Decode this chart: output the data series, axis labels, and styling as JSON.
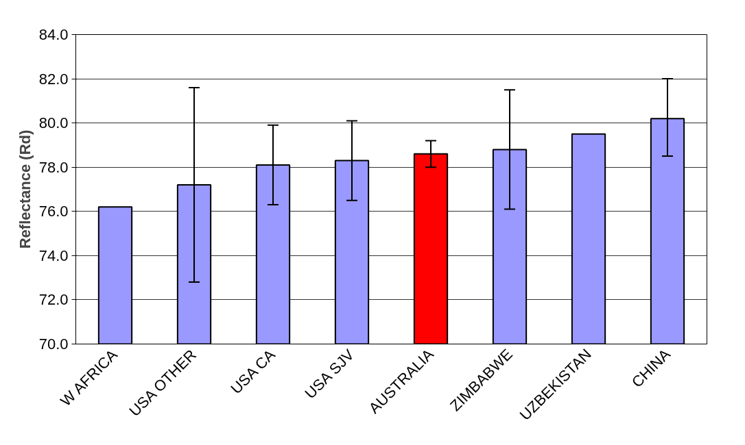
{
  "chart_data": {
    "type": "bar",
    "ylabel": "Reflectance (Rd)",
    "categories": [
      "W AFRICA",
      "USA OTHER",
      "USA CA",
      "USA SJV",
      "AUSTRALIA",
      "ZIMBABWE",
      "UZBEKISTAN",
      "CHINA"
    ],
    "values": [
      76.2,
      77.2,
      78.1,
      78.3,
      78.6,
      78.8,
      79.5,
      80.2
    ],
    "colors": [
      "#9999ff",
      "#9999ff",
      "#9999ff",
      "#9999ff",
      "#ff0000",
      "#9999ff",
      "#9999ff",
      "#9999ff"
    ],
    "errors": [
      null,
      [
        72.8,
        81.6
      ],
      [
        76.3,
        79.9
      ],
      [
        76.5,
        80.1
      ],
      [
        78.0,
        79.2
      ],
      [
        76.1,
        81.5
      ],
      null,
      [
        78.5,
        82.0
      ]
    ],
    "ylim": [
      70,
      84
    ],
    "yticks": [
      {
        "value": 70,
        "label": "70.0"
      },
      {
        "value": 72,
        "label": "72.0"
      },
      {
        "value": 74,
        "label": "74.0"
      },
      {
        "value": 76,
        "label": "76.0"
      },
      {
        "value": 78,
        "label": "78.0"
      },
      {
        "value": 80,
        "label": "80.0"
      },
      {
        "value": 82,
        "label": "82.0"
      },
      {
        "value": 84,
        "label": "84.0"
      }
    ],
    "grid": "y"
  }
}
